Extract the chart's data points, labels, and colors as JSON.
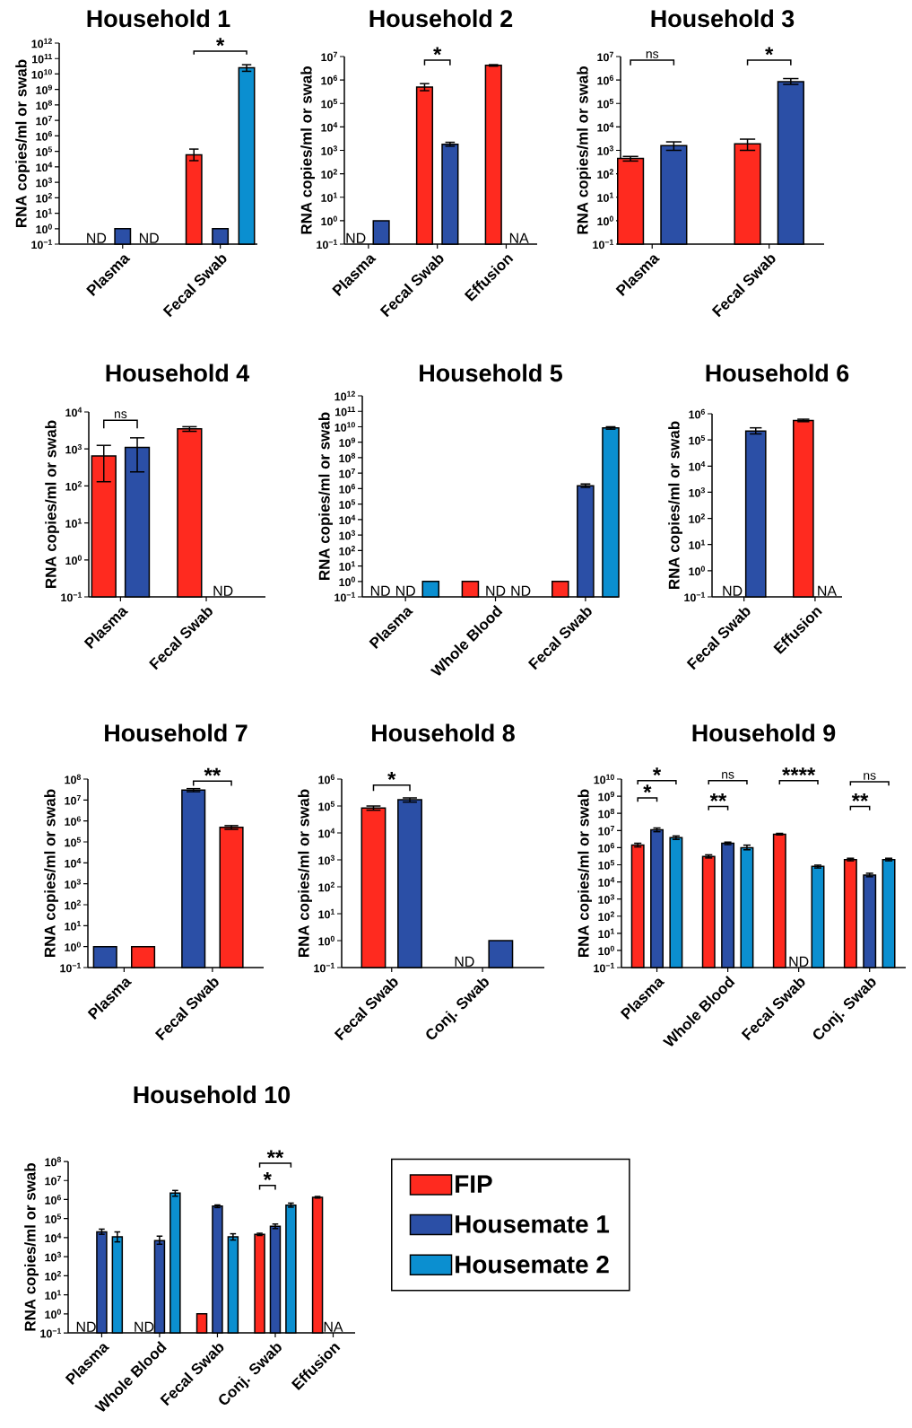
{
  "chart_data": [
    {
      "type": "bar",
      "title": "Household 1",
      "ylabel": "RNA copies/ml or swab",
      "log": true,
      "ylim": [
        0.1,
        1000000000000.0
      ],
      "yticks": [
        {
          "value": 0.1,
          "label": "10$^{−1}$"
        },
        {
          "value": 1,
          "label": "10$^{0}$"
        },
        {
          "value": 10,
          "label": "10$^{1}$"
        },
        {
          "value": 100,
          "label": "10$^{2}$"
        },
        {
          "value": 1000,
          "label": "10$^{3}$"
        },
        {
          "value": 10000.0,
          "label": "10$^{4}$"
        },
        {
          "value": 100000.0,
          "label": "10$^{5}$"
        },
        {
          "value": 1000000.0,
          "label": "10$^{6}$"
        },
        {
          "value": 10000000.0,
          "label": "10$^{7}$"
        },
        {
          "value": 100000000.0,
          "label": "10$^{8}$"
        },
        {
          "value": 1000000000.0,
          "label": "10$^{9}$"
        },
        {
          "value": 10000000000.0,
          "label": "10$^{10}$"
        },
        {
          "value": 100000000000.0,
          "label": "10$^{11}$"
        },
        {
          "value": 1000000000000.0,
          "label": "10$^{12}$"
        }
      ],
      "categories": [
        "Plasma",
        "Fecal Swab"
      ],
      "series": [
        {
          "color": "#ff2a1f",
          "values": [
            null,
            60000
          ],
          "errors": [
            null,
            [
              25000,
              140000
            ]
          ],
          "value_labels": [
            "ND",
            null
          ]
        },
        {
          "color": "#2b4fa6",
          "values": [
            1,
            1
          ]
        },
        {
          "color": "#0b8fd0",
          "values": [
            null,
            25000000000
          ],
          "errors": [
            null,
            [
              15000000000,
              40000000000
            ]
          ],
          "value_labels": [
            "ND",
            null
          ]
        }
      ],
      "annotations": [
        "*"
      ]
    },
    {
      "type": "bar",
      "title": "Household 2",
      "ylabel": "RNA copies/ml or swab",
      "log": true,
      "ylim": [
        0.1,
        10000000.0
      ],
      "yticks": [
        {
          "value": 0.1,
          "label": "10$^{−1}$"
        },
        {
          "value": 1,
          "label": "10$^{0}$"
        },
        {
          "value": 10,
          "label": "10$^{1}$"
        },
        {
          "value": 100,
          "label": "10$^{2}$"
        },
        {
          "value": 1000,
          "label": "10$^{3}$"
        },
        {
          "value": 10000.0,
          "label": "10$^{4}$"
        },
        {
          "value": 100000.0,
          "label": "10$^{5}$"
        },
        {
          "value": 1000000.0,
          "label": "10$^{6}$"
        },
        {
          "value": 10000000.0,
          "label": "10$^{7}$"
        }
      ],
      "categories": [
        "Plasma",
        "Fecal Swab",
        "Effusion"
      ],
      "series": [
        {
          "color": "#ff2a1f",
          "values": [
            null,
            500000,
            4200000
          ],
          "errors": [
            null,
            [
              350000,
              700000
            ],
            [
              3900000,
              4500000
            ]
          ],
          "value_labels": [
            "ND",
            null,
            null
          ]
        },
        {
          "color": "#2b4fa6",
          "values": [
            1,
            1800,
            null
          ],
          "errors": [
            null,
            [
              1500,
              2200
            ],
            null
          ],
          "value_labels": [
            null,
            null,
            "NA"
          ]
        }
      ],
      "annotations": [
        "*"
      ]
    },
    {
      "type": "bar",
      "title": "Household 3",
      "ylabel": "RNA copies/ml or swab",
      "log": true,
      "ylim": [
        0.1,
        10000000.0
      ],
      "yticks": [
        {
          "value": 0.1,
          "label": "10$^{−1}$"
        },
        {
          "value": 1,
          "label": "10$^{0}$"
        },
        {
          "value": 10,
          "label": "10$^{1}$"
        },
        {
          "value": 100,
          "label": "10$^{2}$"
        },
        {
          "value": 1000,
          "label": "10$^{3}$"
        },
        {
          "value": 10000.0,
          "label": "10$^{4}$"
        },
        {
          "value": 100000.0,
          "label": "10$^{5}$"
        },
        {
          "value": 1000000.0,
          "label": "10$^{6}$"
        },
        {
          "value": 10000000.0,
          "label": "10$^{7}$"
        }
      ],
      "categories": [
        "Plasma",
        "Fecal Swab"
      ],
      "series": [
        {
          "color": "#ff2a1f",
          "values": [
            450,
            1900
          ],
          "errors": [
            [
              350,
              550
            ],
            [
              1000,
              3000
            ]
          ]
        },
        {
          "color": "#2b4fa6",
          "values": [
            1600,
            850000
          ],
          "errors": [
            [
              1000,
              2300
            ],
            [
              650000,
              1150000
            ]
          ]
        }
      ],
      "annotations": [
        "ns",
        "*"
      ]
    },
    {
      "type": "bar",
      "title": "Household 4",
      "ylabel": "RNA copies/ml or swab",
      "log": true,
      "ylim": [
        0.1,
        10000.0
      ],
      "yticks": [
        {
          "value": 0.1,
          "label": "10$^{−1}$"
        },
        {
          "value": 1,
          "label": "10$^{0}$"
        },
        {
          "value": 10,
          "label": "10$^{1}$"
        },
        {
          "value": 100,
          "label": "10$^{2}$"
        },
        {
          "value": 1000,
          "label": "10$^{3}$"
        },
        {
          "value": 10000.0,
          "label": "10$^{4}$"
        }
      ],
      "categories": [
        "Plasma",
        "Fecal Swab"
      ],
      "series": [
        {
          "color": "#ff2a1f",
          "values": [
            650,
            3500
          ],
          "errors": [
            [
              130,
              1250
            ],
            [
              3000,
              4000
            ]
          ]
        },
        {
          "color": "#2b4fa6",
          "values": [
            1100,
            null
          ],
          "errors": [
            [
              240,
              2000
            ],
            null
          ],
          "value_labels": [
            null,
            "ND"
          ]
        }
      ],
      "annotations": [
        "ns"
      ]
    },
    {
      "type": "bar",
      "title": "Household 5",
      "ylabel": "RNA copies/ml or swab",
      "log": true,
      "ylim": [
        0.1,
        1000000000000.0
      ],
      "yticks": [
        {
          "value": 0.1,
          "label": "10$^{−1}$"
        },
        {
          "value": 1,
          "label": "10$^{0}$"
        },
        {
          "value": 10,
          "label": "10$^{1}$"
        },
        {
          "value": 100,
          "label": "10$^{2}$"
        },
        {
          "value": 1000,
          "label": "10$^{3}$"
        },
        {
          "value": 10000.0,
          "label": "10$^{4}$"
        },
        {
          "value": 100000.0,
          "label": "10$^{5}$"
        },
        {
          "value": 1000000.0,
          "label": "10$^{6}$"
        },
        {
          "value": 10000000.0,
          "label": "10$^{7}$"
        },
        {
          "value": 100000000.0,
          "label": "10$^{8}$"
        },
        {
          "value": 1000000000.0,
          "label": "10$^{9}$"
        },
        {
          "value": 10000000000.0,
          "label": "10$^{10}$"
        },
        {
          "value": 100000000000.0,
          "label": "10$^{11}$"
        },
        {
          "value": 1000000000000.0,
          "label": "10$^{12}$"
        }
      ],
      "categories": [
        "Plasma",
        "Whole Blood",
        "Fecal Swab"
      ],
      "series": [
        {
          "color": "#ff2a1f",
          "values": [
            null,
            1,
            1
          ],
          "value_labels": [
            "ND",
            null,
            null
          ]
        },
        {
          "color": "#2b4fa6",
          "values": [
            null,
            null,
            1500000
          ],
          "errors": [
            null,
            null,
            [
              1200000,
              2000000
            ]
          ],
          "value_labels": [
            "ND",
            "ND",
            null
          ]
        },
        {
          "color": "#0b8fd0",
          "values": [
            1,
            null,
            8500000000
          ],
          "errors": [
            null,
            null,
            [
              7000000000,
              10000000000
            ]
          ],
          "value_labels": [
            null,
            "ND",
            null
          ]
        }
      ]
    },
    {
      "type": "bar",
      "title": "Household 6",
      "ylabel": "RNA copies/ml or swab",
      "log": true,
      "ylim": [
        0.1,
        1000000.0
      ],
      "yticks": [
        {
          "value": 0.1,
          "label": "10$^{−1}$"
        },
        {
          "value": 1,
          "label": "10$^{0}$"
        },
        {
          "value": 10,
          "label": "10$^{1}$"
        },
        {
          "value": 100,
          "label": "10$^{2}$"
        },
        {
          "value": 1000,
          "label": "10$^{3}$"
        },
        {
          "value": 10000.0,
          "label": "10$^{4}$"
        },
        {
          "value": 100000.0,
          "label": "10$^{5}$"
        },
        {
          "value": 1000000.0,
          "label": "10$^{6}$"
        }
      ],
      "categories": [
        "Fecal Swab",
        "Effusion"
      ],
      "series": [
        {
          "color": "#ff2a1f",
          "values": [
            null,
            550000
          ],
          "errors": [
            null,
            [
              500000,
              620000
            ]
          ],
          "value_labels": [
            "ND",
            null
          ]
        },
        {
          "color": "#2b4fa6",
          "values": [
            220000,
            null
          ],
          "errors": [
            [
              170000,
              290000
            ],
            null
          ],
          "value_labels": [
            null,
            "NA"
          ]
        }
      ]
    },
    {
      "type": "bar",
      "title": "Household 7",
      "ylabel": "RNA copies/ml or swab",
      "log": true,
      "ylim": [
        0.1,
        100000000.0
      ],
      "yticks": [
        {
          "value": 0.1,
          "label": "10$^{−1}$"
        },
        {
          "value": 1,
          "label": "10$^{0}$"
        },
        {
          "value": 10,
          "label": "10$^{1}$"
        },
        {
          "value": 100,
          "label": "10$^{2}$"
        },
        {
          "value": 1000,
          "label": "10$^{3}$"
        },
        {
          "value": 10000.0,
          "label": "10$^{4}$"
        },
        {
          "value": 100000.0,
          "label": "10$^{5}$"
        },
        {
          "value": 1000000.0,
          "label": "10$^{6}$"
        },
        {
          "value": 10000000.0,
          "label": "10$^{7}$"
        },
        {
          "value": 100000000.0,
          "label": "10$^{8}$"
        }
      ],
      "categories": [
        "Plasma",
        "Fecal Swab"
      ],
      "series": [
        {
          "color": "#2b4fa6",
          "values": [
            1,
            30000000
          ],
          "errors": [
            null,
            [
              25000000,
              35000000
            ]
          ]
        },
        {
          "color": "#ff2a1f",
          "values": [
            1,
            500000
          ],
          "errors": [
            null,
            [
              400000,
              600000
            ]
          ]
        }
      ],
      "annotations": [
        "**"
      ]
    },
    {
      "type": "bar",
      "title": "Household 8",
      "ylabel": "RNA copies/ml or swab",
      "log": true,
      "ylim": [
        0.1,
        1000000.0
      ],
      "yticks": [
        {
          "value": 0.1,
          "label": "10$^{−1}$"
        },
        {
          "value": 1,
          "label": "10$^{0}$"
        },
        {
          "value": 10,
          "label": "10$^{1}$"
        },
        {
          "value": 100,
          "label": "10$^{2}$"
        },
        {
          "value": 1000,
          "label": "10$^{3}$"
        },
        {
          "value": 10000.0,
          "label": "10$^{4}$"
        },
        {
          "value": 100000.0,
          "label": "10$^{5}$"
        },
        {
          "value": 1000000.0,
          "label": "10$^{6}$"
        }
      ],
      "categories": [
        "Fecal Swab",
        "Conj. Swab"
      ],
      "series": [
        {
          "color": "#ff2a1f",
          "values": [
            85000,
            null
          ],
          "errors": [
            [
              70000,
              100000
            ],
            null
          ],
          "value_labels": [
            null,
            "ND"
          ]
        },
        {
          "color": "#2b4fa6",
          "values": [
            170000,
            1
          ],
          "errors": [
            [
              140000,
              200000
            ],
            null
          ]
        }
      ],
      "annotations": [
        "*"
      ]
    },
    {
      "type": "bar",
      "title": "Household 9",
      "ylabel": "RNA copies/ml or swab",
      "log": true,
      "ylim": [
        0.1,
        10000000000.0
      ],
      "yticks": [
        {
          "value": 0.1,
          "label": "10$^{−1}$"
        },
        {
          "value": 1,
          "label": "10$^{0}$"
        },
        {
          "value": 10,
          "label": "10$^{1}$"
        },
        {
          "value": 100,
          "label": "10$^{2}$"
        },
        {
          "value": 1000,
          "label": "10$^{3}$"
        },
        {
          "value": 10000.0,
          "label": "10$^{4}$"
        },
        {
          "value": 100000.0,
          "label": "10$^{5}$"
        },
        {
          "value": 1000000.0,
          "label": "10$^{6}$"
        },
        {
          "value": 10000000.0,
          "label": "10$^{7}$"
        },
        {
          "value": 100000000.0,
          "label": "10$^{8}$"
        },
        {
          "value": 1000000000.0,
          "label": "10$^{9}$"
        },
        {
          "value": 10000000000.0,
          "label": "10$^{10}$"
        }
      ],
      "categories": [
        "Plasma",
        "Whole Blood",
        "Fecal Swab",
        "Conj. Swab"
      ],
      "series": [
        {
          "color": "#ff2a1f",
          "values": [
            1400000,
            300000,
            6000000,
            200000
          ],
          "errors": [
            [
              1100000,
              1800000
            ],
            [
              250000,
              380000
            ],
            [
              5500000,
              6800000
            ],
            [
              170000,
              240000
            ]
          ]
        },
        {
          "color": "#2b4fa6",
          "values": [
            11000000,
            1800000,
            null,
            25000
          ],
          "errors": [
            [
              8500000,
              14000000
            ],
            [
              1500000,
              2100000
            ],
            null,
            [
              20000,
              32000
            ]
          ],
          "value_labels": [
            null,
            null,
            "ND",
            null
          ]
        },
        {
          "color": "#0b8fd0",
          "values": [
            3800000,
            1000000,
            80000,
            200000
          ],
          "errors": [
            [
              3000000,
              4800000
            ],
            [
              750000,
              1400000
            ],
            [
              65000,
              95000
            ],
            [
              170000,
              240000
            ]
          ]
        }
      ],
      "annotations": [
        "*",
        "*",
        "ns",
        "**",
        "****",
        "ns",
        "**"
      ]
    },
    {
      "type": "bar",
      "title": "Household 10",
      "ylabel": "RNA copies/ml or swab",
      "log": true,
      "ylim": [
        0.1,
        100000000.0
      ],
      "legend": "right",
      "yticks": [
        {
          "value": 0.1,
          "label": "10$^{−1}$"
        },
        {
          "value": 1,
          "label": "10$^{0}$"
        },
        {
          "value": 10,
          "label": "10$^{1}$"
        },
        {
          "value": 100,
          "label": "10$^{2}$"
        },
        {
          "value": 1000,
          "label": "10$^{3}$"
        },
        {
          "value": 10000.0,
          "label": "10$^{4}$"
        },
        {
          "value": 100000.0,
          "label": "10$^{5}$"
        },
        {
          "value": 1000000.0,
          "label": "10$^{6}$"
        },
        {
          "value": 10000000.0,
          "label": "10$^{7}$"
        },
        {
          "value": 100000000.0,
          "label": "10$^{8}$"
        }
      ],
      "categories": [
        "Plasma",
        "Whole Blood",
        "Fecal Swab",
        "Conj. Swab",
        "Effusion"
      ],
      "series": [
        {
          "name": "FIP",
          "color": "#ff2a1f",
          "values": [
            null,
            null,
            1,
            15000,
            1300000
          ],
          "errors": [
            null,
            null,
            null,
            [
              13000,
              17000
            ],
            [
              1200000,
              1450000
            ]
          ],
          "value_labels": [
            "ND",
            "ND",
            null,
            null,
            null
          ]
        },
        {
          "name": "Housemate 1",
          "color": "#2b4fa6",
          "values": [
            20000,
            7000,
            450000,
            40000,
            null
          ],
          "errors": [
            [
              15000,
              28000
            ],
            [
              4500,
              12000
            ],
            [
              380000,
              520000
            ],
            [
              30000,
              52000
            ],
            null
          ],
          "value_labels": [
            null,
            null,
            null,
            null,
            "NA"
          ]
        },
        {
          "name": "Housemate 2",
          "color": "#0b8fd0",
          "values": [
            11000,
            2200000,
            11000,
            500000,
            null
          ],
          "errors": [
            [
              6000,
              20000
            ],
            [
              1500000,
              3000000
            ],
            [
              7500,
              16000
            ],
            [
              400000,
              650000
            ],
            null
          ]
        }
      ],
      "annotations": [
        "*",
        "**"
      ]
    }
  ]
}
